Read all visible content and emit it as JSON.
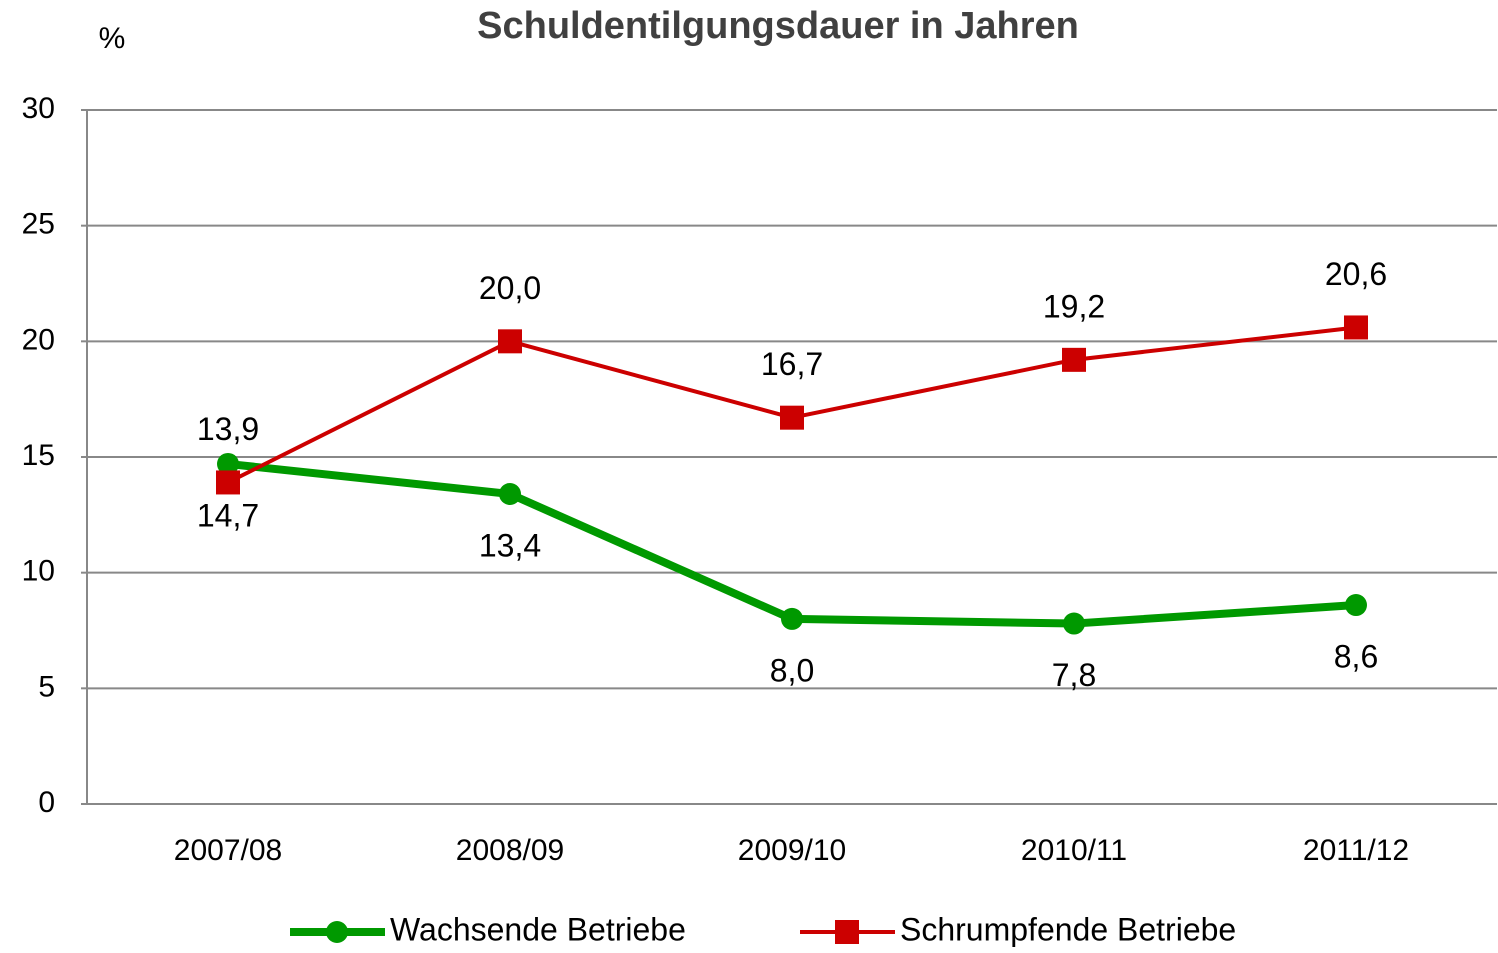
{
  "chart_data": {
    "type": "line",
    "title": "Schuldentilgungsdauer in Jahren",
    "y_label": "%",
    "categories": [
      "2007/08",
      "2008/09",
      "2009/10",
      "2010/11",
      "2011/12"
    ],
    "series": [
      {
        "name": "Wachsende Betriebe",
        "color": "#009900",
        "marker": "circle",
        "values": [
          14.7,
          13.4,
          8.0,
          7.8,
          8.6
        ],
        "value_labels": [
          "14,7",
          "13,4",
          "8,0",
          "7,8",
          "8,6"
        ]
      },
      {
        "name": "Schrumpfende Betriebe",
        "color": "#cc0000",
        "marker": "square",
        "values": [
          13.9,
          20.0,
          16.7,
          19.2,
          20.6
        ],
        "value_labels": [
          "13,9",
          "20,0",
          "16,7",
          "19,2",
          "20,6"
        ]
      }
    ],
    "ylim": [
      0,
      30
    ],
    "yticks": [
      0,
      5,
      10,
      15,
      20,
      25,
      30
    ],
    "grid": true,
    "legend": "bottom"
  }
}
